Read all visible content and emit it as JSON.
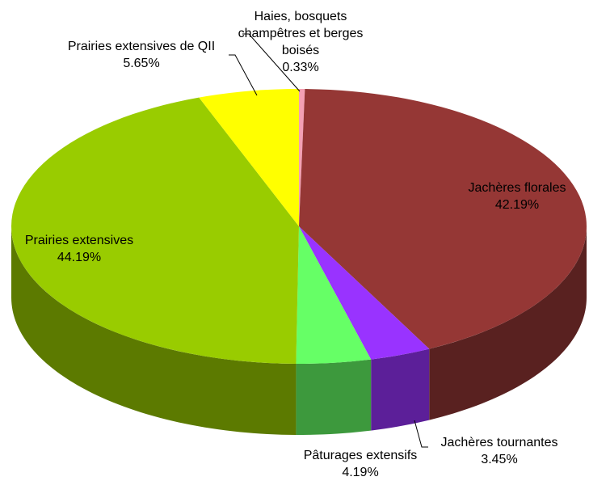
{
  "chart_data": {
    "type": "pie3d",
    "categories": [
      "Haies, bosquets champêtres et berges boisés",
      "Jachères florales",
      "Jachères tournantes",
      "Pâturages extensifs",
      "Prairies extensives",
      "Prairies extensives de QII"
    ],
    "values": [
      0.33,
      42.19,
      3.45,
      4.19,
      44.19,
      5.65
    ],
    "value_labels": [
      "0.33%",
      "42.19%",
      "3.45%",
      "4.19%",
      "44.19%",
      "5.65%"
    ],
    "colors": [
      "#f4a0b4",
      "#953735",
      "#9933ff",
      "#66ff66",
      "#99cc00",
      "#ffff00"
    ]
  }
}
